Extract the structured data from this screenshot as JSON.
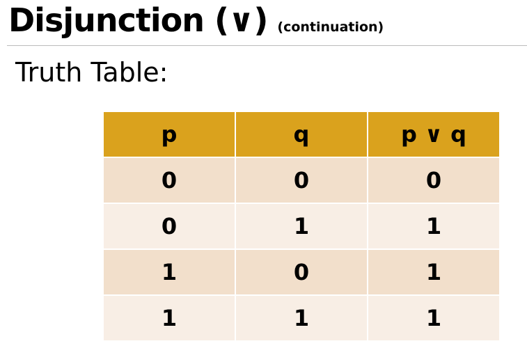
{
  "header": {
    "title": "Disjunction (∨)",
    "subtitle": "(continuation)"
  },
  "section": {
    "label": "Truth Table:"
  },
  "table": {
    "columns": [
      "p",
      "q",
      "p ∨ q"
    ],
    "rows": [
      [
        0,
        0,
        0
      ],
      [
        0,
        1,
        1
      ],
      [
        1,
        0,
        1
      ],
      [
        1,
        1,
        1
      ]
    ]
  }
}
